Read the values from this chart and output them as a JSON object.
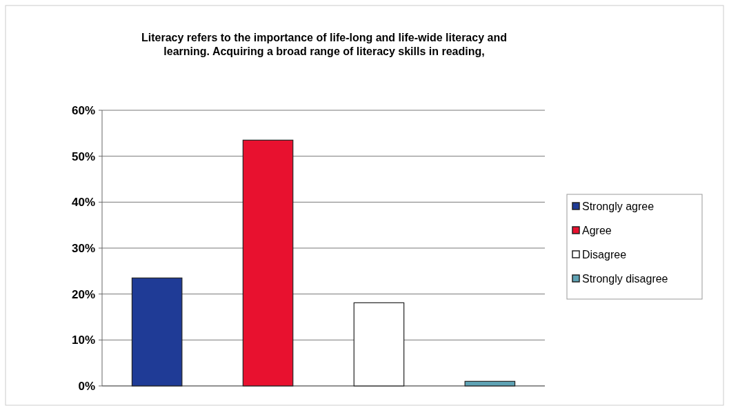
{
  "chart_data": {
    "type": "bar",
    "title": "Literacy refers to the importance of life-long and life-wide literacy and learning. Acquiring a broad range of literacy skills in reading,",
    "categories": [
      null,
      null,
      null,
      null
    ],
    "series": [
      {
        "name": "Strongly agree",
        "color": "#1f3b96",
        "values": [
          23.5,
          null,
          null,
          null
        ]
      },
      {
        "name": "Agree",
        "color": "#e8112f",
        "values": [
          null,
          53.5,
          null,
          null
        ]
      },
      {
        "name": "Disagree",
        "color": "#ffffff",
        "values": [
          null,
          null,
          18.1,
          null
        ]
      },
      {
        "name": "Strongly disagree",
        "color": "#5fa3b5",
        "values": [
          null,
          null,
          null,
          1
        ]
      }
    ],
    "ylim": [
      0,
      60
    ],
    "yticks": [
      {
        "value": 0,
        "label": "0%"
      },
      {
        "value": 10,
        "label": "10%"
      },
      {
        "value": 20,
        "label": "20%"
      },
      {
        "value": 30,
        "label": "30%"
      },
      {
        "value": 40,
        "label": "40%"
      },
      {
        "value": 50,
        "label": "50%"
      },
      {
        "value": 60,
        "label": "60%"
      }
    ],
    "grid": "y",
    "legend": "right"
  }
}
